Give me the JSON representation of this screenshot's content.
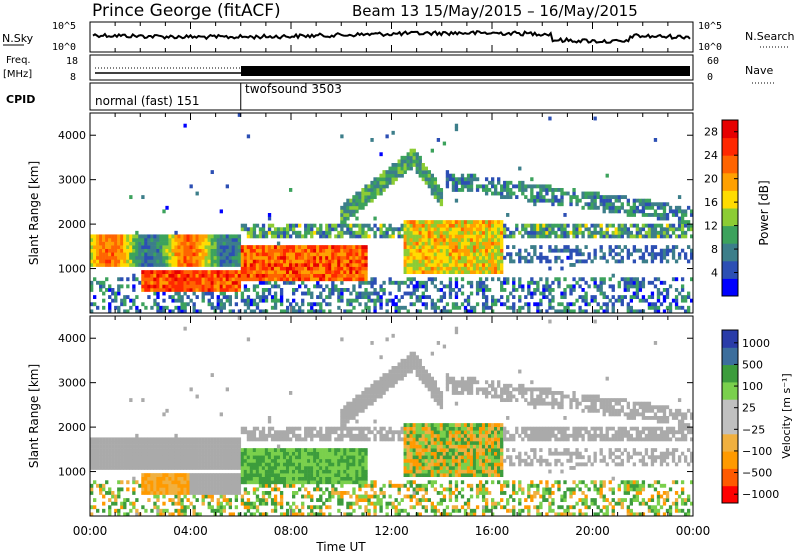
{
  "header": {
    "station": "Prince George (fitACF)",
    "beam_info": "Beam 13 15/May/2015 – 16/May/2015"
  },
  "noise_panel": {
    "left_label": "N.Sky",
    "left_ticks": [
      "10^5",
      "10^0"
    ],
    "right_label": "N.Search",
    "right_ticks": [
      "10^5",
      "10^0"
    ]
  },
  "freq_panel": {
    "left_label_1": "Freq.",
    "left_label_2": "[MHz]",
    "left_ticks": [
      "18",
      "8"
    ],
    "right_label": "Nave",
    "right_ticks": [
      "60",
      "0"
    ]
  },
  "cpid_panel": {
    "label": "CPID",
    "mode_1": "normal (fast) 151",
    "mode_1_end_hour": 6,
    "mode_2": "twofsound 3503"
  },
  "colors": {
    "power_scale": [
      "#0000ff",
      "#2c4fb4",
      "#3c7e8a",
      "#3ca25c",
      "#8ccc34",
      "#ffdc00",
      "#ffa000",
      "#ff6400",
      "#ff2800",
      "#e60000"
    ],
    "velocity_scale": [
      "#ff0000",
      "#ff5a00",
      "#ff9a00",
      "#f0b040",
      "#c0c0c0",
      "#c0c0c0",
      "#7ad04c",
      "#3c9c3c",
      "#3c6e9c",
      "#2a3ca8"
    ],
    "ground_scatter": "#aaaaaa"
  },
  "chart_data": [
    {
      "type": "heatmap",
      "name": "power",
      "ylabel": "Slant Range [km]",
      "yticks": [
        "4000",
        "3000",
        "2000",
        "1000"
      ],
      "ylim": [
        0,
        4500
      ],
      "xlim_hours": [
        0,
        24
      ],
      "colorbar_label": "Power [dB]",
      "colorbar_ticks": [
        "28",
        "24",
        "20",
        "16",
        "12",
        "8",
        "4"
      ],
      "colorbar_range": [
        0,
        30
      ]
    },
    {
      "type": "heatmap",
      "name": "velocity",
      "ylabel": "Slant Range [km]",
      "yticks": [
        "4000",
        "3000",
        "2000",
        "1000"
      ],
      "ylim": [
        0,
        4500
      ],
      "xlim_hours": [
        0,
        24
      ],
      "colorbar_label": "Velocity [m s⁻¹]",
      "colorbar_ticks": [
        "1000",
        "500",
        "100",
        "25",
        "−25",
        "−100",
        "−500",
        "−1000"
      ]
    }
  ],
  "xaxis": {
    "ticks": [
      "00:00",
      "04:00",
      "08:00",
      "12:00",
      "16:00",
      "20:00",
      "00:00"
    ],
    "label": "Time UT"
  }
}
